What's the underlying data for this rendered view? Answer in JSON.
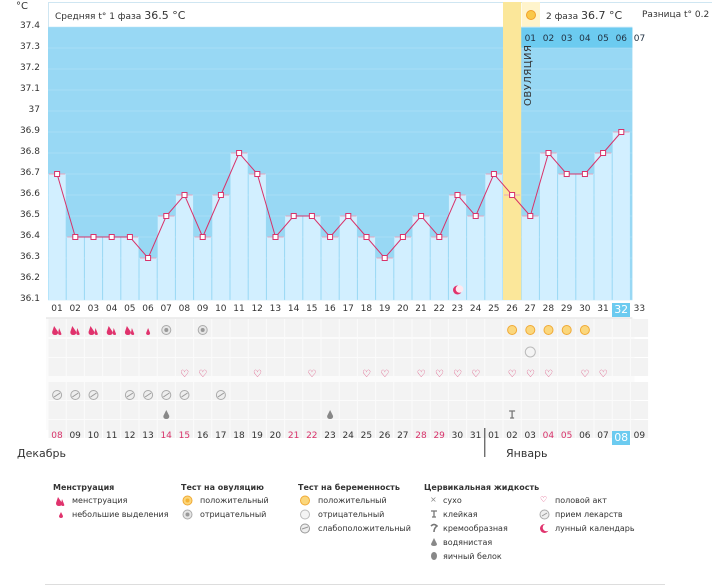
{
  "header": {
    "unit": "°C",
    "phase1_label": "Средняя t° 1 фаза",
    "phase1_value": "36.5 °C",
    "phase2_label": "2 фаза",
    "phase2_value": "36.7 °C",
    "diff_label": "Разница t°",
    "diff_value": "0.2 °"
  },
  "ovulation_label": "ОВУЛЯЦИЯ",
  "phase2_days": [
    "01",
    "02",
    "03",
    "04",
    "05",
    "06",
    "07"
  ],
  "chart_data": {
    "type": "line",
    "x": [
      "01",
      "02",
      "03",
      "04",
      "05",
      "06",
      "07",
      "08",
      "09",
      "10",
      "11",
      "12",
      "13",
      "14",
      "15",
      "16",
      "17",
      "18",
      "19",
      "20",
      "21",
      "22",
      "23",
      "24",
      "25",
      "26",
      "27",
      "28",
      "29",
      "30",
      "31",
      "32"
    ],
    "y": [
      36.7,
      36.4,
      36.4,
      36.4,
      36.4,
      36.3,
      36.5,
      36.6,
      36.4,
      36.6,
      36.8,
      36.7,
      36.4,
      36.5,
      36.5,
      36.4,
      36.5,
      36.4,
      36.3,
      36.4,
      36.5,
      36.4,
      36.6,
      36.5,
      36.7,
      36.6,
      36.5,
      36.8,
      36.7,
      36.7,
      36.8,
      36.9
    ],
    "extra_x_label": "33",
    "ylim": [
      36.1,
      37.4
    ],
    "yticks": [
      "36.1",
      "36.2",
      "36.3",
      "36.4",
      "36.5",
      "36.6",
      "36.7",
      "36.8",
      "36.9",
      "37",
      "37.1",
      "37.2",
      "37.3",
      "37.4"
    ],
    "ovulation_day": "26",
    "highlight_day": "32",
    "colors": {
      "plot_bg": "#98d8f4",
      "bar_fill": "#d2efff",
      "line": "#d8326a",
      "ovulation": "#fbe79a",
      "phase2_header": "#6ccbf0"
    }
  },
  "marker_rows": {
    "menstruation": [
      "big",
      "big",
      "big",
      "big",
      "big",
      "small"
    ],
    "ovulation_test_negative": [
      "07",
      "09"
    ],
    "pregnancy_test_positive": [
      "26",
      "27",
      "28",
      "29",
      "30"
    ],
    "pregnancy_test_negative": [
      "27"
    ],
    "sex_days": [
      "08",
      "09",
      "12",
      "15",
      "18",
      "19",
      "21",
      "22",
      "23",
      "24",
      "26",
      "27",
      "28",
      "30",
      "31"
    ],
    "medicine_days": [
      "01",
      "02",
      "03",
      "05",
      "06",
      "07",
      "08",
      "10"
    ],
    "fluid_watery": [
      "07",
      "16"
    ],
    "fluid_sticky": [
      "26"
    ],
    "lunar_day": "23"
  },
  "dates": {
    "numbers": [
      "08",
      "09",
      "10",
      "11",
      "12",
      "13",
      "14",
      "15",
      "16",
      "17",
      "18",
      "19",
      "20",
      "21",
      "22",
      "23",
      "24",
      "25",
      "26",
      "27",
      "28",
      "29",
      "30",
      "31",
      "01",
      "02",
      "03",
      "04",
      "05",
      "06",
      "07",
      "08",
      "09"
    ],
    "weekend": [
      "08",
      "14",
      "15",
      "21",
      "22",
      "28",
      "29",
      "04",
      "05"
    ],
    "month1": "Декабрь",
    "month2": "Январь"
  },
  "legend": {
    "menstruation": {
      "title": "Менструация",
      "items": [
        "менструация",
        "небольшие выделения"
      ]
    },
    "ovulation_test": {
      "title": "Тест на овуляцию",
      "items": [
        "положительный",
        "отрицательный"
      ]
    },
    "pregnancy_test": {
      "title": "Тест на беременность",
      "items": [
        "положительный",
        "отрицательный",
        "слабоположительный"
      ]
    },
    "cervical": {
      "title": "Цервикальная жидкость",
      "items": [
        "сухо",
        "клейкая",
        "кремообразная",
        "водянистая",
        "яичный белок"
      ]
    },
    "other": {
      "items": [
        "половой акт",
        "прием лекарств",
        "лунный календарь"
      ]
    }
  }
}
